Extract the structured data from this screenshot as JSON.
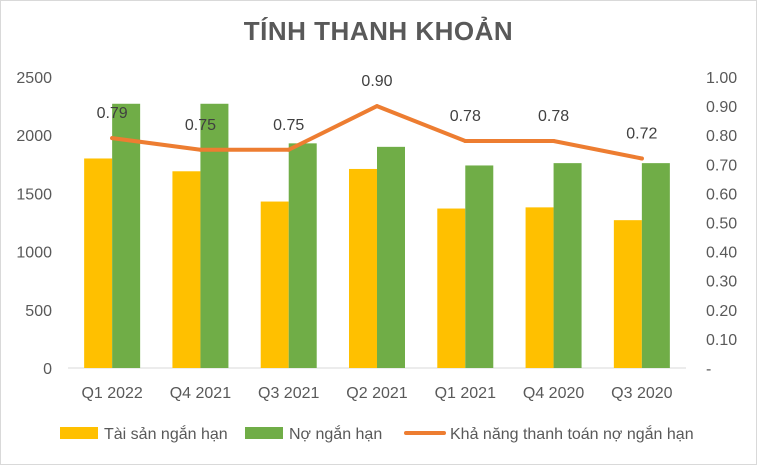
{
  "chart_data": {
    "type": "bar",
    "title": "TÍNH THANH KHOẢN",
    "categories": [
      "Q1 2022",
      "Q4 2021",
      "Q3 2021",
      "Q2 2021",
      "Q1 2021",
      "Q4 2020",
      "Q3 2020"
    ],
    "series": [
      {
        "name": "Tài sản ngắn hạn",
        "type": "bar",
        "axis": "left",
        "color": "#FFC000",
        "values": [
          1800,
          1690,
          1430,
          1710,
          1370,
          1380,
          1270
        ]
      },
      {
        "name": "Nợ ngắn hạn",
        "type": "bar",
        "axis": "left",
        "color": "#70AD47",
        "values": [
          2270,
          2270,
          1930,
          1900,
          1740,
          1760,
          1760
        ]
      },
      {
        "name": "Khả năng thanh toán nợ ngắn hạn",
        "type": "line",
        "axis": "right",
        "color": "#ED7D31",
        "values": [
          0.79,
          0.75,
          0.75,
          0.9,
          0.78,
          0.78,
          0.72
        ],
        "labels": [
          "0.79",
          "0.75",
          "0.75",
          "0.90",
          "0.78",
          "0.78",
          "0.72"
        ]
      }
    ],
    "ylim": [
      0,
      2500
    ],
    "y_ticks": [
      "0",
      "500",
      "1000",
      "1500",
      "2000",
      "2500"
    ],
    "y2lim": [
      0,
      1.0
    ],
    "y2_ticks": [
      "-",
      "0.10",
      "0.20",
      "0.30",
      "0.40",
      "0.50",
      "0.60",
      "0.70",
      "0.80",
      "0.90",
      "1.00"
    ],
    "grid": false,
    "legend_position": "bottom"
  }
}
